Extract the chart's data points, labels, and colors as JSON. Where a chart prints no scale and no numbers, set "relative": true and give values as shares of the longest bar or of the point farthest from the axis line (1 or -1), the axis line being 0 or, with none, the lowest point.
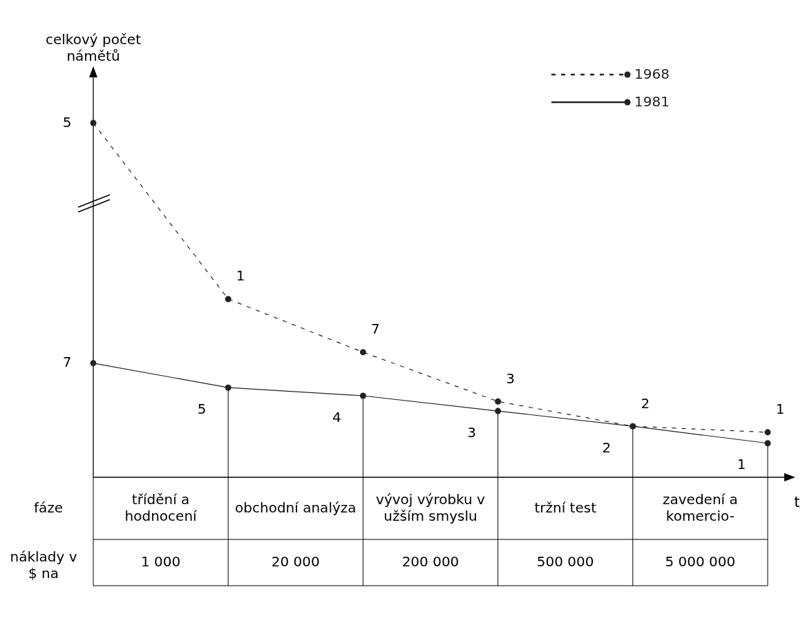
{
  "chart_data": {
    "type": "line",
    "relative": true,
    "ylabel": "celkový počet námětů",
    "xlabel": "t",
    "categories": [
      null,
      null,
      null,
      null,
      null,
      null
    ],
    "series": [
      {
        "name": "1968",
        "color": "#222222",
        "line_style": "dashed",
        "values": [
          1,
          0.503,
          0.353,
          0.214,
          0.144,
          0.127
        ]
      },
      {
        "name": "1981",
        "color": "#222222",
        "line_style": "solid",
        "values": [
          0.322,
          0.253,
          0.23,
          0.187,
          0.144,
          0.096
        ]
      }
    ],
    "marker": "circle",
    "legend": "top right",
    "annotations": [
      "fáze",
      "třídění a hodnocení",
      "obchodní analýza",
      "vývoj výrobku v užším smyslu",
      "tržní test",
      "zavedení a komercio-",
      "náklady v $ na",
      "1 000",
      "20 000",
      "200 000",
      "500 000",
      "5 000 000",
      "5",
      "1",
      "7",
      "3",
      "2",
      "1",
      "7",
      "5",
      "4",
      "3",
      "2",
      "1"
    ]
  }
}
